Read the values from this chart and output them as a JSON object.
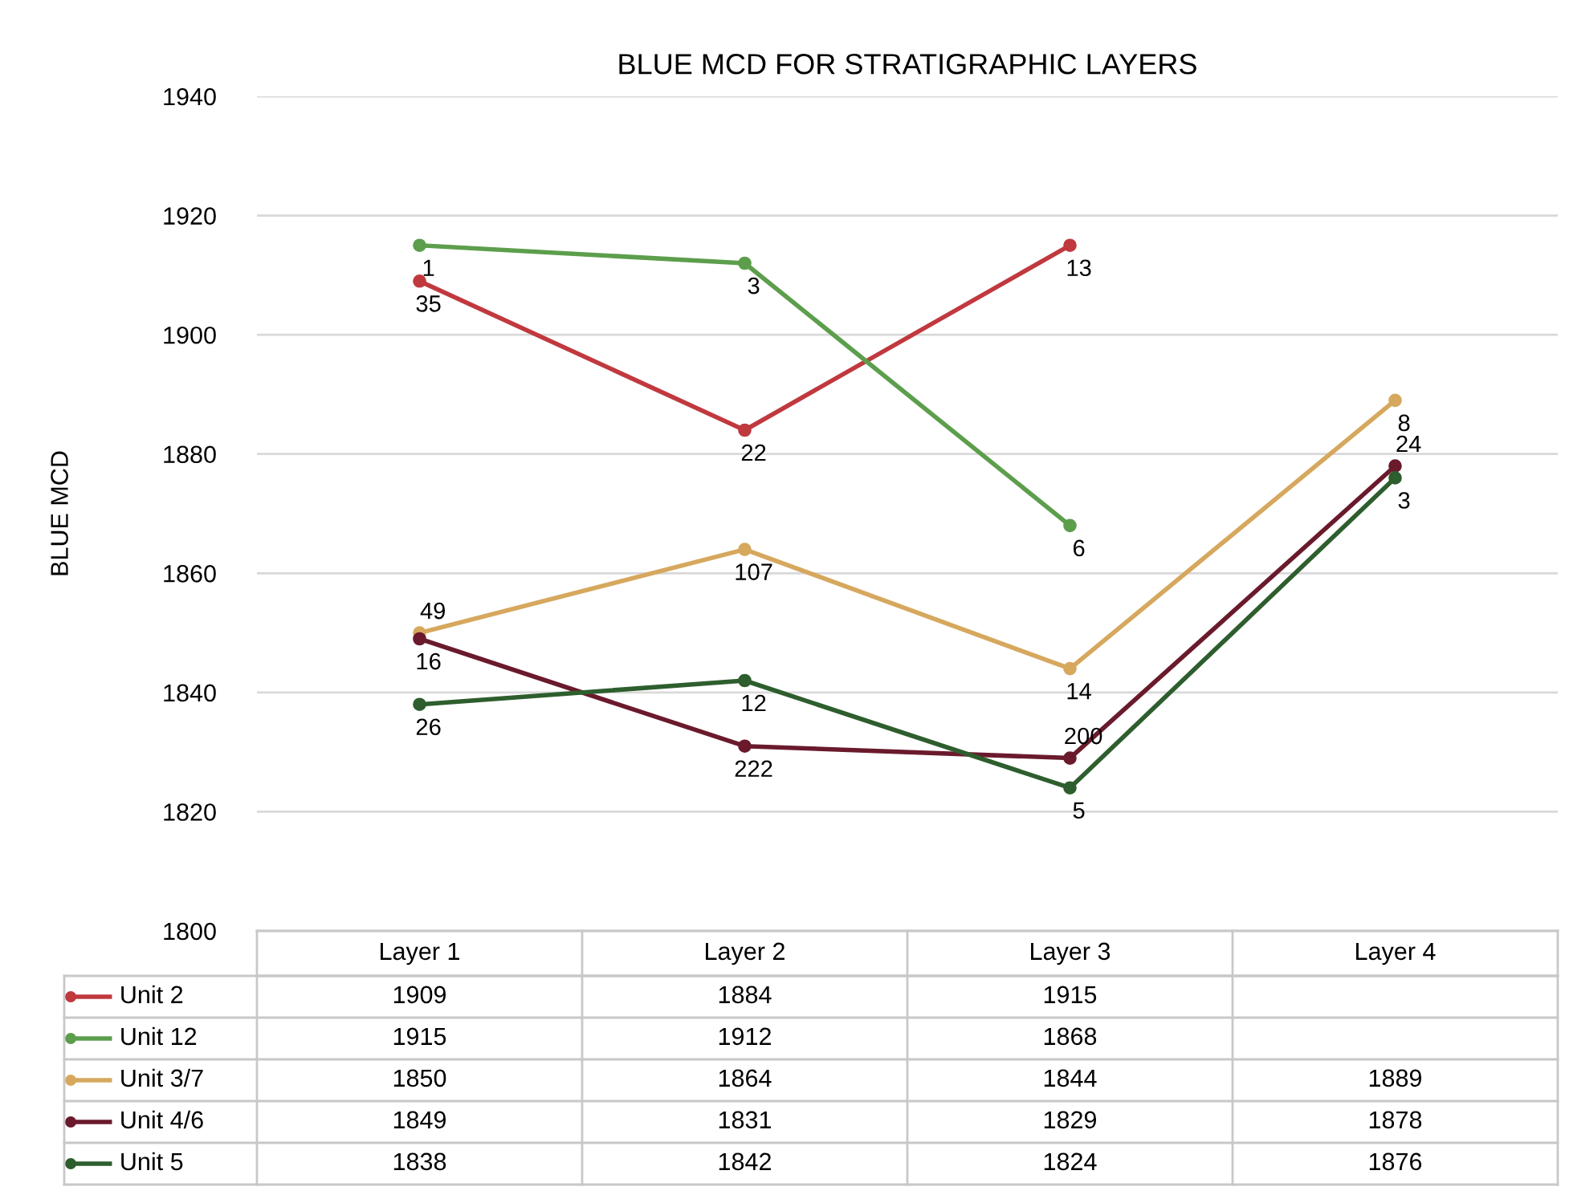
{
  "chart_data": {
    "type": "line",
    "title": "BLUE MCD FOR STRATIGRAPHIC LAYERS",
    "ylabel": "BLUE MCD",
    "categories": [
      "Layer 1",
      "Layer 2",
      "Layer 3",
      "Layer 4"
    ],
    "series": [
      {
        "name": "Unit 2",
        "color": "#c0393f",
        "values": [
          1909,
          1884,
          1915,
          null
        ]
      },
      {
        "name": "Unit 12",
        "color": "#5c9e4c",
        "values": [
          1915,
          1912,
          1868,
          null
        ]
      },
      {
        "name": "Unit 3/7",
        "color": "#d6a85e",
        "values": [
          1850,
          1864,
          1844,
          1889
        ]
      },
      {
        "name": "Unit 4/6",
        "color": "#6a1a2c",
        "values": [
          1849,
          1831,
          1829,
          1878
        ]
      },
      {
        "name": "Unit 5",
        "color": "#2e5e2e",
        "values": [
          1838,
          1842,
          1824,
          1876
        ]
      }
    ],
    "ylim": [
      1800,
      1940
    ],
    "yticks": [
      1800,
      1820,
      1840,
      1860,
      1880,
      1900,
      1920,
      1940
    ],
    "grid": "y",
    "legend": "bottom",
    "marker": "circle",
    "line_style": "solid",
    "data_labels": true,
    "annotations": [
      {
        "text": "1",
        "x": "Layer 1",
        "y": 1915
      },
      {
        "text": "35",
        "x": "Layer 1",
        "y": 1909
      },
      {
        "text": "3",
        "x": "Layer 2",
        "y": 1912
      },
      {
        "text": "22",
        "x": "Layer 2",
        "y": 1884
      },
      {
        "text": "13",
        "x": "Layer 3",
        "y": 1915
      },
      {
        "text": "6",
        "x": "Layer 3",
        "y": 1868
      },
      {
        "text": "49",
        "x": "Layer 1",
        "y": 1850
      },
      {
        "text": "107",
        "x": "Layer 2",
        "y": 1864
      },
      {
        "text": "14",
        "x": "Layer 3",
        "y": 1844
      },
      {
        "text": "8",
        "x": "Layer 4",
        "y": 1889
      },
      {
        "text": "16",
        "x": "Layer 1",
        "y": 1849
      },
      {
        "text": "222",
        "x": "Layer 2",
        "y": 1831
      },
      {
        "text": "200",
        "x": "Layer 3",
        "y": 1829
      },
      {
        "text": "24",
        "x": "Layer 4",
        "y": 1878
      },
      {
        "text": "26",
        "x": "Layer 1",
        "y": 1838
      },
      {
        "text": "12",
        "x": "Layer 2",
        "y": 1842
      },
      {
        "text": "5",
        "x": "Layer 3",
        "y": 1824
      },
      {
        "text": "3",
        "x": "Layer 4",
        "y": 1876
      }
    ]
  }
}
